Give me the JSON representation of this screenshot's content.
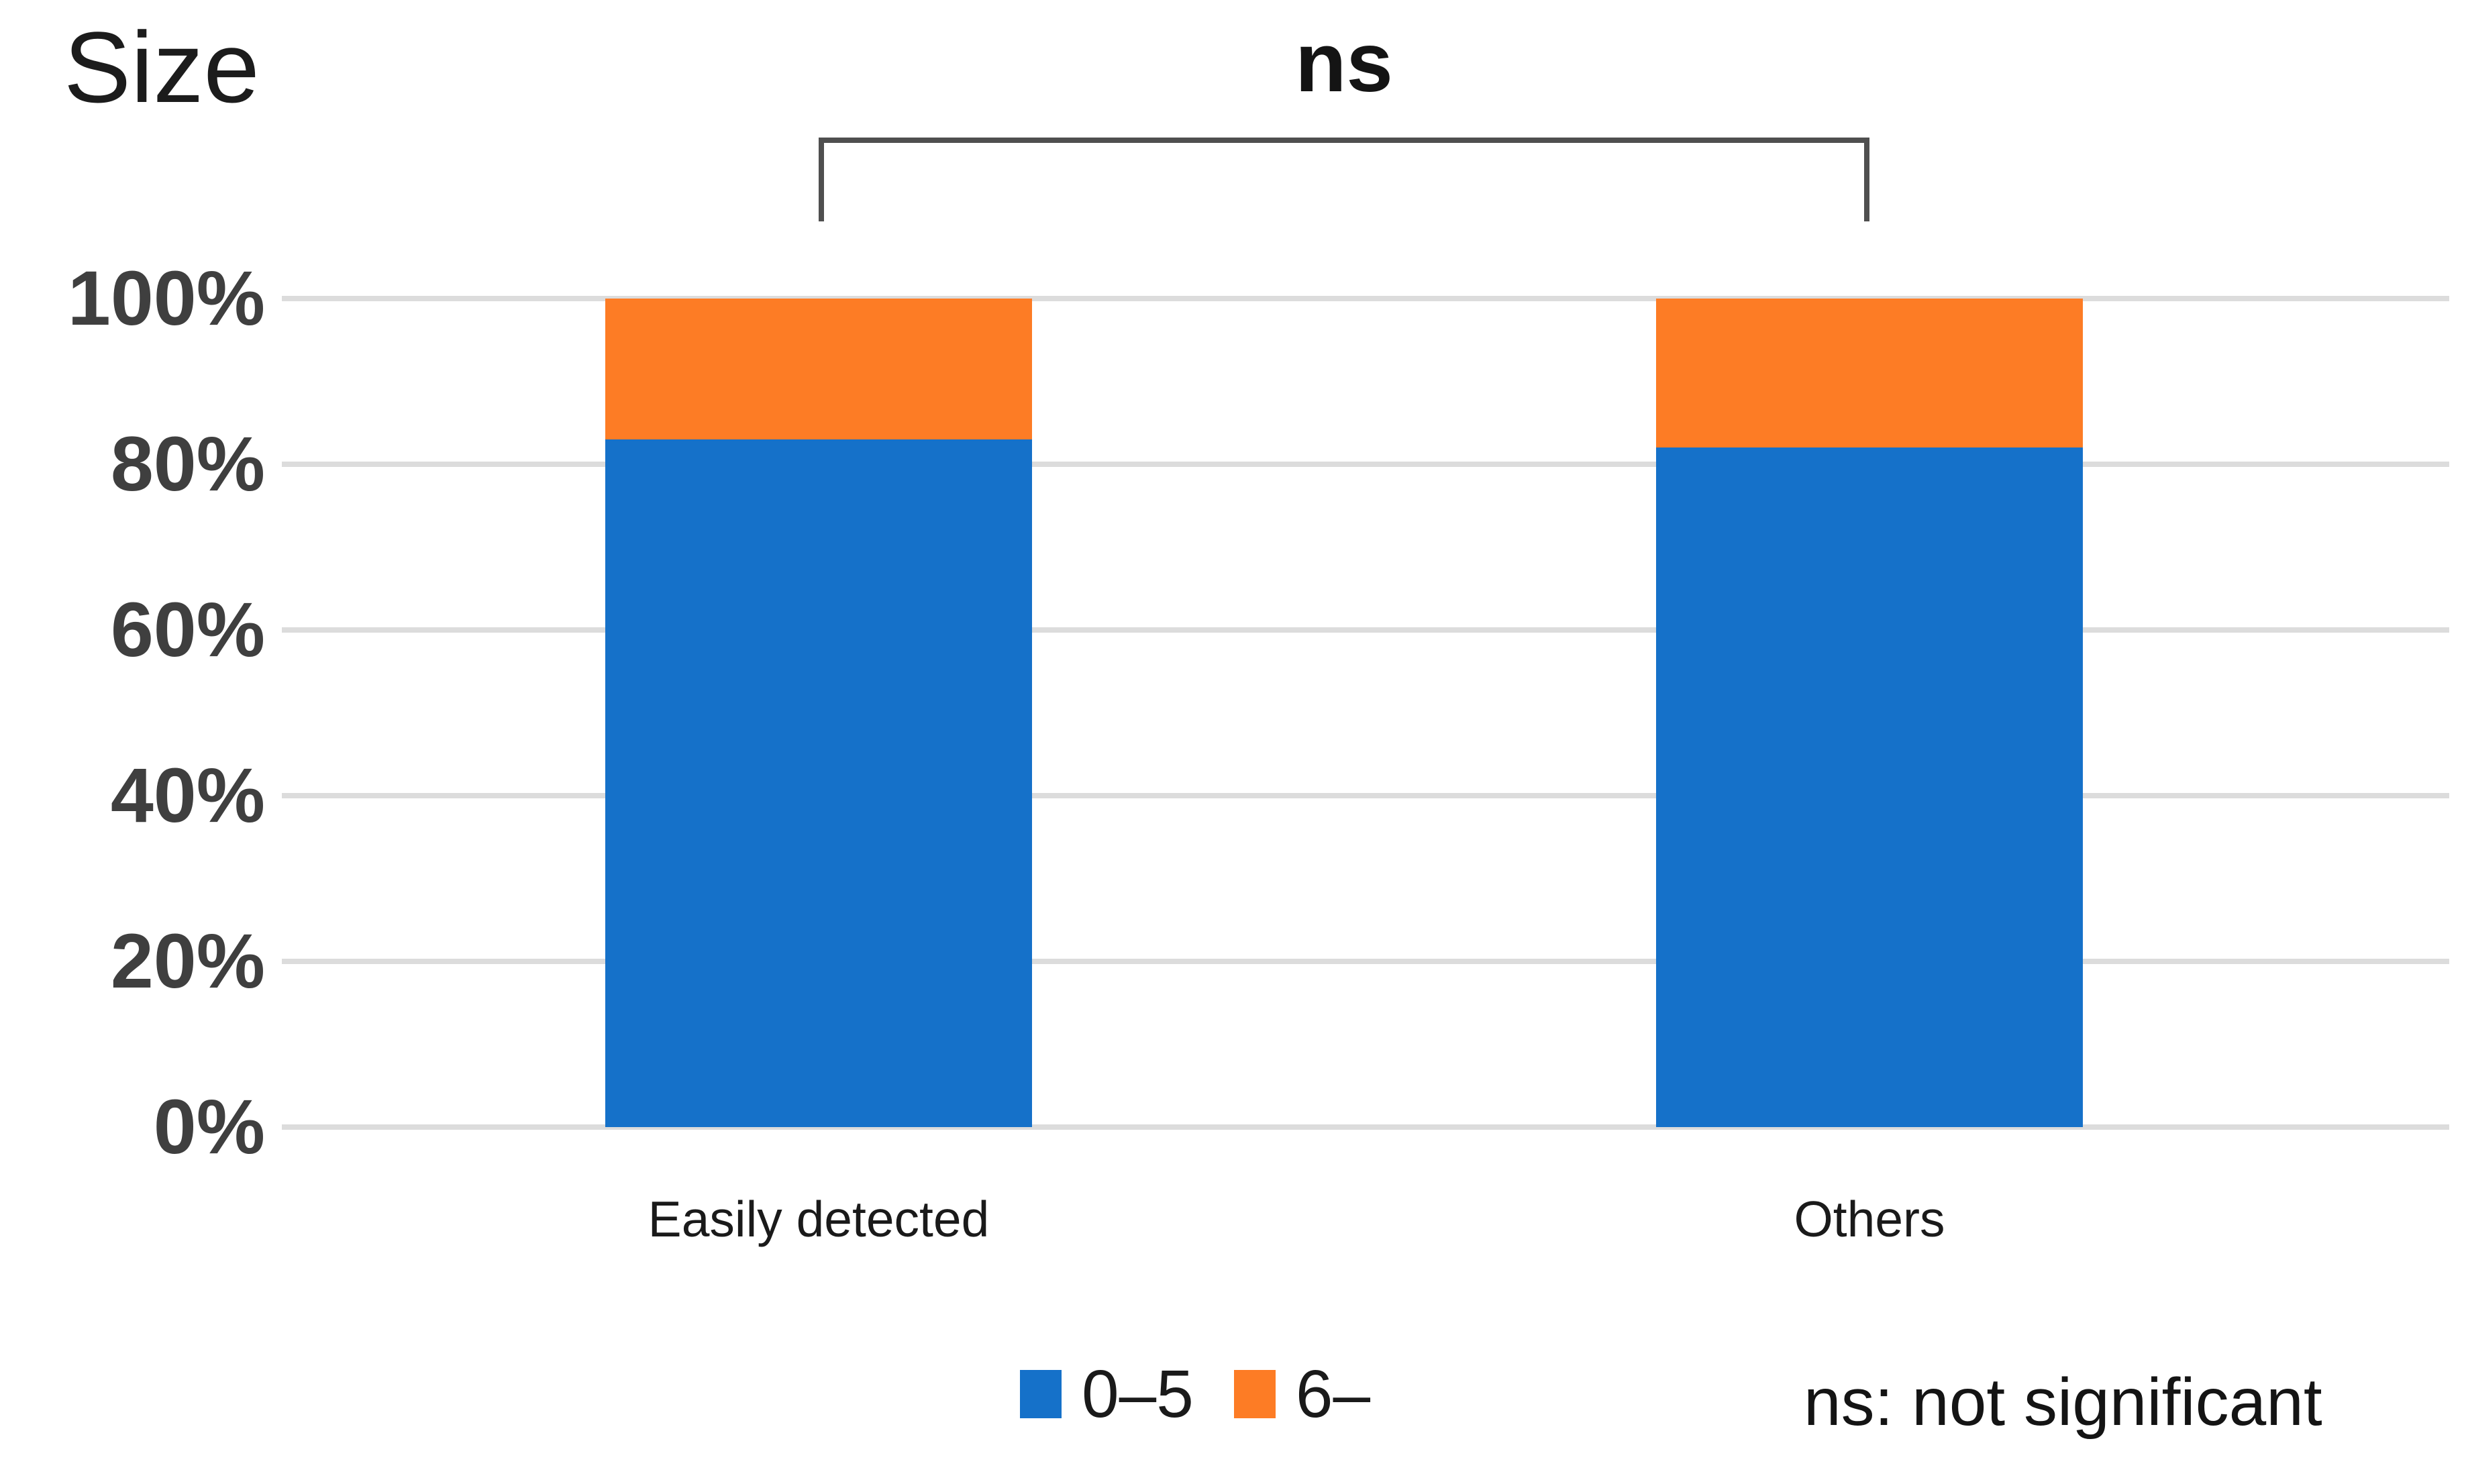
{
  "title": "Size",
  "significance": {
    "label": "ns",
    "footnote": "ns: not significant"
  },
  "legend": {
    "items": [
      "0–5",
      "6–"
    ]
  },
  "chart_data": {
    "type": "bar",
    "stacked": true,
    "unit": "percent",
    "title": "Size",
    "categories": [
      "Easily detected",
      "Others"
    ],
    "series": [
      {
        "name": "0–5",
        "color": "#1571C9",
        "values": [
          83,
          82
        ]
      },
      {
        "name": "6–",
        "color": "#FD7C25",
        "values": [
          17,
          18
        ]
      }
    ],
    "yticks": [
      "100%",
      "80%",
      "60%",
      "40%",
      "20%",
      "0%"
    ],
    "ylim": [
      0,
      100
    ],
    "grid": true,
    "gridline_color": "#dcdcdc",
    "legend_position": "bottom",
    "annotation": {
      "text": "ns",
      "between": [
        "Easily detected",
        "Others"
      ]
    },
    "footnote": "ns: not significant"
  }
}
